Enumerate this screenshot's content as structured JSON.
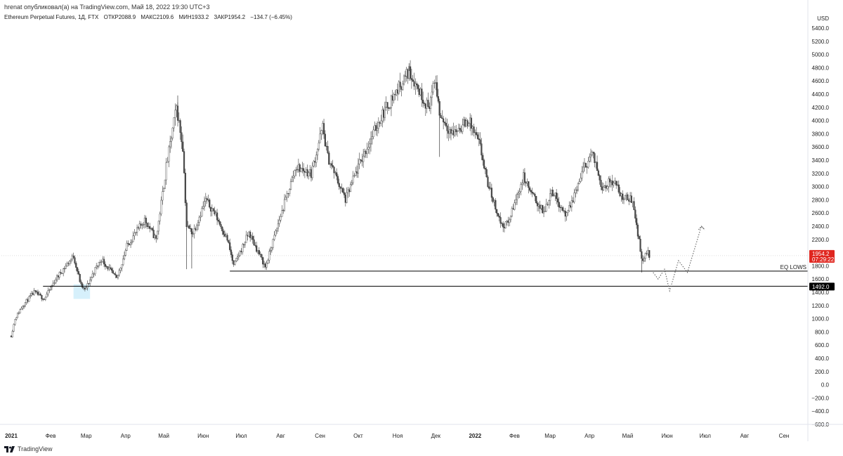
{
  "header": {
    "published": "hrenat опубликовал(а) на TradingView.com, Май 18, 2022 19:30 UTC+3"
  },
  "info": {
    "symbol": "Ethereum Perpetual Futures, 1Д, FTX",
    "open": "ОТКР2088.9",
    "high": "МАКС2109.6",
    "low": "МИН1933.2",
    "close": "ЗАКР1954.2",
    "change": "−134.7 (−6.45%)"
  },
  "footer": {
    "brand": "TradingView"
  },
  "colors": {
    "up": "#ffffff",
    "down": "#4a4a4a",
    "wick": "#3a3a3a",
    "price_badge": "#e0261f",
    "level_badge": "#000000",
    "highlight": "#d6f0fb"
  },
  "chart_data": {
    "type": "candlestick",
    "currency": "USD",
    "ylim": [
      -700,
      5700
    ],
    "y_ticks": [
      "5400.0",
      "5200.0",
      "5000.0",
      "4800.0",
      "4600.0",
      "4400.0",
      "4200.0",
      "4000.0",
      "3800.0",
      "3600.0",
      "3400.0",
      "3200.0",
      "3000.0",
      "2800.0",
      "2600.0",
      "2400.0",
      "2200.0",
      "2000.0",
      "1800.0",
      "1600.0",
      "1400.0",
      "1200.0",
      "1000.0",
      "800.0",
      "600.0",
      "400.0",
      "200.0",
      "0.0",
      "−200.0",
      "−400.0",
      "−600.0"
    ],
    "x_ticks": [
      {
        "label": "2021",
        "date": "2021-01-01",
        "bold": true
      },
      {
        "label": "Фев",
        "date": "2021-02-01"
      },
      {
        "label": "Мар",
        "date": "2021-03-01"
      },
      {
        "label": "Апр",
        "date": "2021-04-01"
      },
      {
        "label": "Май",
        "date": "2021-05-01"
      },
      {
        "label": "Июн",
        "date": "2021-06-01"
      },
      {
        "label": "Июл",
        "date": "2021-07-01"
      },
      {
        "label": "Авг",
        "date": "2021-08-01"
      },
      {
        "label": "Сен",
        "date": "2021-09-01"
      },
      {
        "label": "Окт",
        "date": "2021-10-01"
      },
      {
        "label": "Ноя",
        "date": "2021-11-01"
      },
      {
        "label": "Дек",
        "date": "2021-12-01"
      },
      {
        "label": "2022",
        "date": "2022-01-01",
        "bold": true
      },
      {
        "label": "Фев",
        "date": "2022-02-01"
      },
      {
        "label": "Мар",
        "date": "2022-03-01"
      },
      {
        "label": "Апр",
        "date": "2022-04-01"
      },
      {
        "label": "Май",
        "date": "2022-05-01"
      },
      {
        "label": "Июн",
        "date": "2022-06-01"
      },
      {
        "label": "Июл",
        "date": "2022-07-01"
      },
      {
        "label": "Авг",
        "date": "2022-08-01"
      },
      {
        "label": "Сен",
        "date": "2022-09-01"
      }
    ],
    "price_path": [
      {
        "date": "2021-01-01",
        "price": 740
      },
      {
        "date": "2021-01-04",
        "price": 1000
      },
      {
        "date": "2021-01-10",
        "price": 1200
      },
      {
        "date": "2021-01-19",
        "price": 1400
      },
      {
        "date": "2021-01-27",
        "price": 1300
      },
      {
        "date": "2021-02-05",
        "price": 1600
      },
      {
        "date": "2021-02-19",
        "price": 1950
      },
      {
        "date": "2021-02-25",
        "price": 1500
      },
      {
        "date": "2021-02-28",
        "price": 1430
      },
      {
        "date": "2021-03-08",
        "price": 1750
      },
      {
        "date": "2021-03-13",
        "price": 1900
      },
      {
        "date": "2021-03-25",
        "price": 1600
      },
      {
        "date": "2021-04-02",
        "price": 2100
      },
      {
        "date": "2021-04-16",
        "price": 2500
      },
      {
        "date": "2021-04-25",
        "price": 2200
      },
      {
        "date": "2021-05-03",
        "price": 3300
      },
      {
        "date": "2021-05-11",
        "price": 4200
      },
      {
        "date": "2021-05-16",
        "price": 3600
      },
      {
        "date": "2021-05-19",
        "price": 2400
      },
      {
        "date": "2021-05-24",
        "price": 2300
      },
      {
        "date": "2021-06-03",
        "price": 2800
      },
      {
        "date": "2021-06-10",
        "price": 2600
      },
      {
        "date": "2021-06-20",
        "price": 2200
      },
      {
        "date": "2021-06-25",
        "price": 1800
      },
      {
        "date": "2021-07-07",
        "price": 2300
      },
      {
        "date": "2021-07-20",
        "price": 1780
      },
      {
        "date": "2021-07-31",
        "price": 2500
      },
      {
        "date": "2021-08-13",
        "price": 3300
      },
      {
        "date": "2021-08-25",
        "price": 3200
      },
      {
        "date": "2021-09-03",
        "price": 3900
      },
      {
        "date": "2021-09-07",
        "price": 3450
      },
      {
        "date": "2021-09-21",
        "price": 2800
      },
      {
        "date": "2021-10-01",
        "price": 3300
      },
      {
        "date": "2021-10-20",
        "price": 4100
      },
      {
        "date": "2021-11-10",
        "price": 4750
      },
      {
        "date": "2021-11-25",
        "price": 4200
      },
      {
        "date": "2021-12-01",
        "price": 4600
      },
      {
        "date": "2021-12-04",
        "price": 4100
      },
      {
        "date": "2021-12-14",
        "price": 3800
      },
      {
        "date": "2021-12-27",
        "price": 4000
      },
      {
        "date": "2022-01-05",
        "price": 3600
      },
      {
        "date": "2022-01-10",
        "price": 3100
      },
      {
        "date": "2022-01-22",
        "price": 2400
      },
      {
        "date": "2022-01-27",
        "price": 2450
      },
      {
        "date": "2022-02-08",
        "price": 3150
      },
      {
        "date": "2022-02-14",
        "price": 2900
      },
      {
        "date": "2022-02-24",
        "price": 2600
      },
      {
        "date": "2022-03-02",
        "price": 2950
      },
      {
        "date": "2022-03-14",
        "price": 2550
      },
      {
        "date": "2022-03-28",
        "price": 3300
      },
      {
        "date": "2022-04-03",
        "price": 3500
      },
      {
        "date": "2022-04-11",
        "price": 3000
      },
      {
        "date": "2022-04-20",
        "price": 3100
      },
      {
        "date": "2022-04-26",
        "price": 2850
      },
      {
        "date": "2022-05-05",
        "price": 2800
      },
      {
        "date": "2022-05-09",
        "price": 2300
      },
      {
        "date": "2022-05-12",
        "price": 1900
      },
      {
        "date": "2022-05-17",
        "price": 2000
      },
      {
        "date": "2022-05-18",
        "price": 1954.2
      }
    ],
    "drawings": {
      "eq_lows": {
        "label": "EQ LOWS",
        "price": 1720,
        "from": "2021-06-22"
      },
      "support_line": {
        "price": 1492,
        "from": "2021-01-26"
      },
      "highlight_zone": {
        "from": "2021-02-19",
        "to": "2021-03-04",
        "top": 1520,
        "bottom": 1300
      },
      "projection": [
        {
          "date": "2022-05-21",
          "price": 1700
        },
        {
          "date": "2022-05-25",
          "price": 1600
        },
        {
          "date": "2022-05-30",
          "price": 1750
        },
        {
          "date": "2022-06-03",
          "price": 1420
        },
        {
          "date": "2022-06-10",
          "price": 1880
        },
        {
          "date": "2022-06-17",
          "price": 1700
        },
        {
          "date": "2022-06-23",
          "price": 2080
        },
        {
          "date": "2022-06-28",
          "price": 2400
        },
        {
          "date": "2022-07-01",
          "price": 2340
        }
      ]
    },
    "last_price": {
      "value": "1954.2",
      "countdown": "07:29:22"
    },
    "level_label": "1492.0"
  }
}
